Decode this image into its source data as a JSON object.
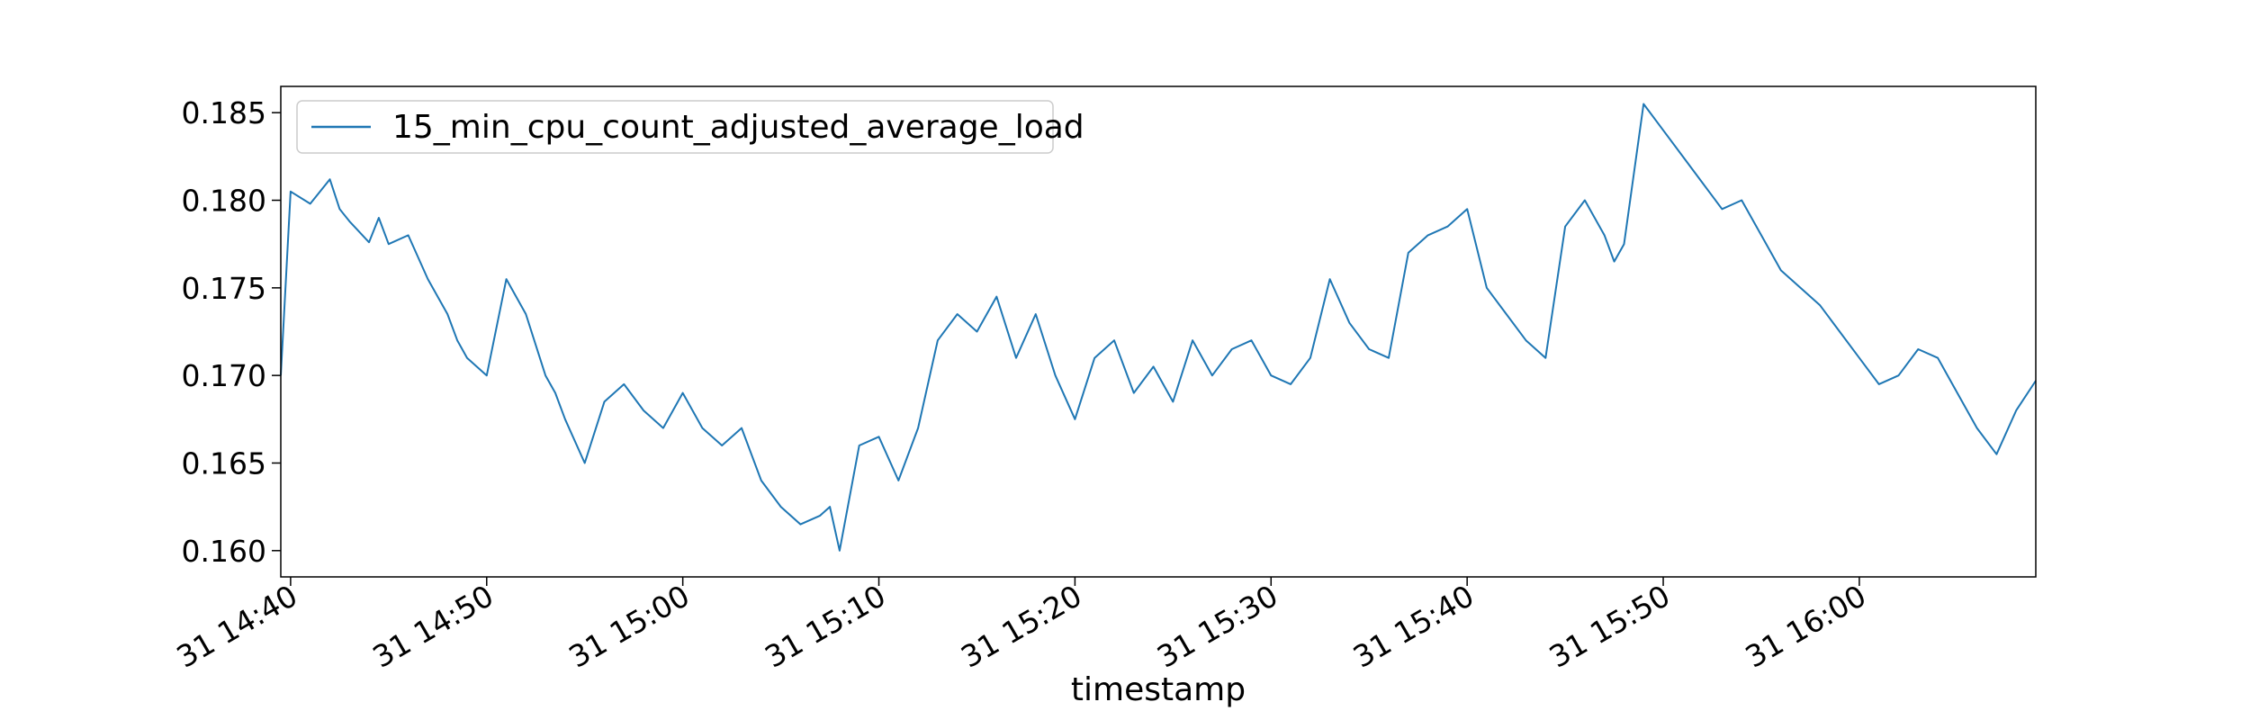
{
  "chart_data": {
    "type": "line",
    "xlabel": "timestamp",
    "ylabel": "",
    "title": "",
    "legend_position": "upper-left",
    "grid": false,
    "line_color": "#1f77b4",
    "xlim": [
      "31 14:39:30",
      "31 16:09:00"
    ],
    "ylim": [
      0.1585,
      0.1865
    ],
    "x_tick_labels": [
      "31 14:40",
      "31 14:50",
      "31 15:00",
      "31 15:10",
      "31 15:20",
      "31 15:30",
      "31 15:40",
      "31 15:50",
      "31 16:00"
    ],
    "x_tick_times": [
      "31 14:40",
      "31 14:50",
      "31 15:00",
      "31 15:10",
      "31 15:20",
      "31 15:30",
      "31 15:40",
      "31 15:50",
      "31 16:00"
    ],
    "y_ticks": [
      0.16,
      0.165,
      0.17,
      0.175,
      0.18,
      0.185
    ],
    "y_tick_labels": [
      "0.160",
      "0.165",
      "0.170",
      "0.175",
      "0.180",
      "0.185"
    ],
    "series": [
      {
        "name": "15_min_cpu_count_adjusted_average_load",
        "x": [
          "31 14:39:30",
          "31 14:40:00",
          "31 14:41:00",
          "31 14:42:00",
          "31 14:42:30",
          "31 14:43:00",
          "31 14:44:00",
          "31 14:44:30",
          "31 14:45:00",
          "31 14:46:00",
          "31 14:47:00",
          "31 14:48:00",
          "31 14:48:30",
          "31 14:49:00",
          "31 14:50:00",
          "31 14:51:00",
          "31 14:52:00",
          "31 14:53:00",
          "31 14:53:30",
          "31 14:54:00",
          "31 14:55:00",
          "31 14:56:00",
          "31 14:57:00",
          "31 14:58:00",
          "31 14:59:00",
          "31 15:00:00",
          "31 15:01:00",
          "31 15:02:00",
          "31 15:03:00",
          "31 15:04:00",
          "31 15:05:00",
          "31 15:06:00",
          "31 15:07:00",
          "31 15:07:30",
          "31 15:08:00",
          "31 15:09:00",
          "31 15:10:00",
          "31 15:11:00",
          "31 15:12:00",
          "31 15:13:00",
          "31 15:14:00",
          "31 15:15:00",
          "31 15:16:00",
          "31 15:17:00",
          "31 15:18:00",
          "31 15:19:00",
          "31 15:20:00",
          "31 15:21:00",
          "31 15:22:00",
          "31 15:23:00",
          "31 15:24:00",
          "31 15:25:00",
          "31 15:26:00",
          "31 15:27:00",
          "31 15:28:00",
          "31 15:29:00",
          "31 15:30:00",
          "31 15:31:00",
          "31 15:32:00",
          "31 15:33:00",
          "31 15:34:00",
          "31 15:35:00",
          "31 15:36:00",
          "31 15:37:00",
          "31 15:38:00",
          "31 15:39:00",
          "31 15:40:00",
          "31 15:41:00",
          "31 15:42:00",
          "31 15:43:00",
          "31 15:44:00",
          "31 15:45:00",
          "31 15:46:00",
          "31 15:47:00",
          "31 15:47:30",
          "31 15:48:00",
          "31 15:49:00",
          "31 15:50:00",
          "31 15:51:00",
          "31 15:52:00",
          "31 15:53:00",
          "31 15:54:00",
          "31 15:55:00",
          "31 15:56:00",
          "31 15:57:00",
          "31 15:58:00",
          "31 15:59:00",
          "31 16:00:00",
          "31 16:01:00",
          "31 16:02:00",
          "31 16:03:00",
          "31 16:04:00",
          "31 16:05:00",
          "31 16:06:00",
          "31 16:07:00",
          "31 16:08:00",
          "31 16:09:00"
        ],
        "y": [
          0.17,
          0.1805,
          0.1798,
          0.1812,
          0.1795,
          0.1788,
          0.1776,
          0.179,
          0.1775,
          0.178,
          0.1755,
          0.1735,
          0.172,
          0.171,
          0.17,
          0.1755,
          0.1735,
          0.17,
          0.169,
          0.1675,
          0.165,
          0.1685,
          0.1695,
          0.168,
          0.167,
          0.169,
          0.167,
          0.166,
          0.167,
          0.164,
          0.1625,
          0.1615,
          0.162,
          0.1625,
          0.16,
          0.166,
          0.1665,
          0.164,
          0.167,
          0.172,
          0.1735,
          0.1725,
          0.1745,
          0.171,
          0.1735,
          0.17,
          0.1675,
          0.171,
          0.172,
          0.169,
          0.1705,
          0.1685,
          0.172,
          0.17,
          0.1715,
          0.172,
          0.17,
          0.1695,
          0.171,
          0.1755,
          0.173,
          0.1715,
          0.171,
          0.177,
          0.178,
          0.1785,
          0.1795,
          0.175,
          0.1735,
          0.172,
          0.171,
          0.1785,
          0.18,
          0.178,
          0.1765,
          0.1775,
          0.1855,
          0.184,
          0.1825,
          0.181,
          0.1795,
          0.18,
          0.178,
          0.176,
          0.175,
          0.174,
          0.1725,
          0.171,
          0.1695,
          0.17,
          0.1715,
          0.171,
          0.169,
          0.167,
          0.1655,
          0.168,
          0.1697
        ]
      }
    ]
  }
}
